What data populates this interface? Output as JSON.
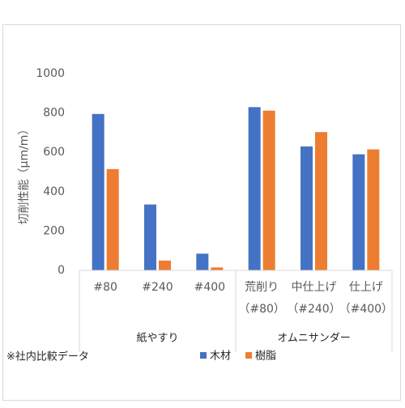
{
  "chart_data": {
    "type": "bar",
    "y_label": "切削性能（μm/m）",
    "categories": [
      [
        "#80"
      ],
      [
        "#240"
      ],
      [
        "#400"
      ],
      [
        "荒削り",
        "（#80）"
      ],
      [
        "中仕上げ",
        "（#240）"
      ],
      [
        "仕上げ",
        "（#400）"
      ]
    ],
    "groups": [
      {
        "label": "紙やすり",
        "span": 3
      },
      {
        "label": "オムニサンダー",
        "span": 3
      }
    ],
    "series": [
      {
        "name": "木材",
        "color": "#4472c4",
        "values": [
          795,
          335,
          85,
          830,
          630,
          590
        ]
      },
      {
        "name": "樹脂",
        "color": "#ed7d31",
        "values": [
          515,
          50,
          15,
          812,
          703,
          615
        ]
      }
    ],
    "ylim": [
      0,
      1000
    ],
    "yticks": [
      0,
      200,
      400,
      600,
      800,
      1000
    ],
    "grid": false,
    "legend": "bottom",
    "note": "※社内比較データ"
  }
}
